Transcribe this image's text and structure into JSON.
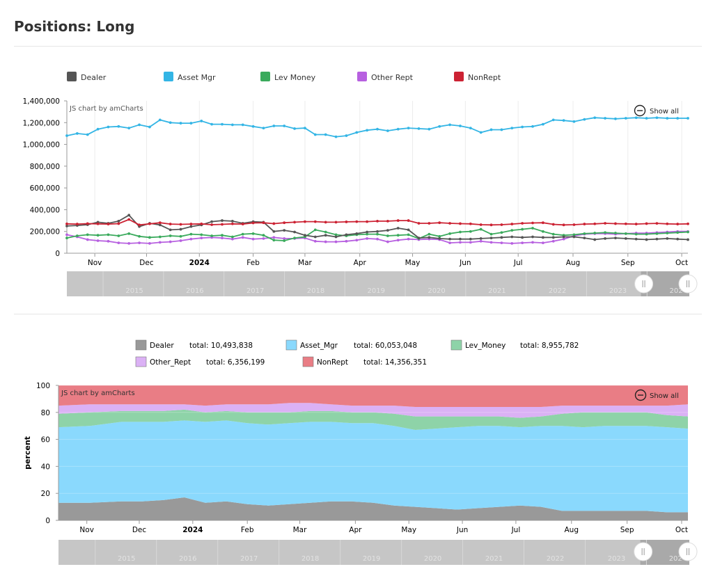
{
  "page": {
    "title": "Positions: Long"
  },
  "colors": {
    "dealer": "#555555",
    "asset_mgr": "#33b5e5",
    "lev_money": "#3aaa5c",
    "other_rept": "#b760e0",
    "nonrept": "#cc2233",
    "dealer_fill": "#999999",
    "asset_fill": "#8ad9fd",
    "lev_fill": "#8ed3a8",
    "other_fill": "#dbb1f5",
    "nonrept_fill": "#e97d85"
  },
  "common": {
    "credit": "JS chart by amCharts",
    "show_all": "Show all",
    "scroll_years": [
      "2015",
      "2016",
      "2017",
      "2018",
      "2019",
      "2020",
      "2021",
      "2022",
      "2023",
      "2024"
    ],
    "scroll_start_year": 2014.4,
    "scroll_end_year": 2024.7,
    "scroll_window": [
      2023.9,
      2024.7
    ]
  },
  "chart_data": [
    {
      "type": "line",
      "title": "Positions: Long",
      "x": [
        0,
        1,
        2,
        3,
        4,
        5,
        6,
        7,
        8,
        9,
        10,
        11,
        12,
        13,
        14,
        15,
        16,
        17,
        18,
        19,
        20,
        21,
        22,
        23,
        24,
        25,
        26,
        27,
        28,
        29,
        30,
        31,
        32,
        33,
        34,
        35,
        36,
        37,
        38,
        39,
        40,
        41,
        42,
        43,
        44,
        45,
        46,
        47,
        48,
        49,
        50,
        51,
        52,
        53,
        54,
        55,
        56,
        57,
        58,
        59,
        60
      ],
      "x_tick_positions": [
        2.7,
        7.7,
        12.8,
        18.0,
        23.0,
        28.3,
        33.4,
        38.5,
        43.6,
        48.9,
        54.2,
        59.4
      ],
      "x_tick_labels": [
        "Nov",
        "Dec",
        "2024",
        "Feb",
        "Mar",
        "Apr",
        "May",
        "Jun",
        "Jul",
        "Aug",
        "Sep",
        "Oct"
      ],
      "ylim": [
        0,
        1400000
      ],
      "y_ticks": [
        0,
        200000,
        400000,
        600000,
        800000,
        1000000,
        1200000,
        1400000
      ],
      "y_tick_labels": [
        "0",
        "200,000",
        "400,000",
        "600,000",
        "800,000",
        "1,000,000",
        "1,200,000",
        "1,400,000"
      ],
      "series": [
        {
          "name": "Dealer",
          "color_key": "dealer",
          "values": [
            250000,
            255000,
            262000,
            285000,
            275000,
            295000,
            350000,
            245000,
            275000,
            260000,
            215000,
            220000,
            245000,
            260000,
            290000,
            300000,
            295000,
            275000,
            290000,
            285000,
            200000,
            210000,
            195000,
            165000,
            150000,
            165000,
            150000,
            170000,
            180000,
            195000,
            200000,
            210000,
            230000,
            215000,
            140000,
            145000,
            135000,
            130000,
            130000,
            130000,
            135000,
            140000,
            145000,
            150000,
            145000,
            150000,
            145000,
            145000,
            150000,
            150000,
            140000,
            125000,
            135000,
            140000,
            135000,
            130000,
            125000,
            130000,
            135000,
            130000,
            125000
          ]
        },
        {
          "name": "Asset Mgr",
          "color_key": "asset_mgr",
          "values": [
            1080000,
            1100000,
            1090000,
            1140000,
            1160000,
            1165000,
            1150000,
            1180000,
            1160000,
            1225000,
            1200000,
            1195000,
            1195000,
            1215000,
            1185000,
            1185000,
            1180000,
            1180000,
            1165000,
            1150000,
            1170000,
            1170000,
            1145000,
            1150000,
            1090000,
            1090000,
            1070000,
            1080000,
            1110000,
            1130000,
            1140000,
            1125000,
            1140000,
            1150000,
            1145000,
            1140000,
            1165000,
            1180000,
            1170000,
            1150000,
            1110000,
            1135000,
            1135000,
            1150000,
            1160000,
            1165000,
            1185000,
            1225000,
            1220000,
            1210000,
            1230000,
            1245000,
            1240000,
            1235000,
            1240000,
            1245000,
            1240000,
            1245000,
            1240000,
            1240000,
            1240000
          ]
        },
        {
          "name": "Lev Money",
          "color_key": "lev_money",
          "values": [
            140000,
            160000,
            170000,
            165000,
            170000,
            160000,
            180000,
            155000,
            145000,
            150000,
            160000,
            155000,
            175000,
            170000,
            160000,
            165000,
            150000,
            175000,
            180000,
            165000,
            120000,
            115000,
            140000,
            150000,
            215000,
            195000,
            170000,
            160000,
            170000,
            175000,
            175000,
            160000,
            165000,
            170000,
            135000,
            175000,
            155000,
            180000,
            195000,
            200000,
            220000,
            175000,
            190000,
            210000,
            220000,
            230000,
            200000,
            175000,
            165000,
            170000,
            180000,
            185000,
            190000,
            185000,
            180000,
            175000,
            175000,
            180000,
            185000,
            190000,
            195000
          ]
        },
        {
          "name": "Other Rept",
          "color_key": "other_rept",
          "values": [
            170000,
            150000,
            125000,
            115000,
            110000,
            95000,
            90000,
            95000,
            90000,
            100000,
            105000,
            115000,
            130000,
            140000,
            145000,
            140000,
            130000,
            145000,
            130000,
            135000,
            145000,
            135000,
            135000,
            140000,
            110000,
            105000,
            105000,
            110000,
            120000,
            135000,
            130000,
            105000,
            120000,
            130000,
            125000,
            130000,
            125000,
            95000,
            100000,
            100000,
            110000,
            100000,
            95000,
            90000,
            95000,
            100000,
            95000,
            110000,
            130000,
            160000,
            175000,
            180000,
            180000,
            175000,
            180000,
            185000,
            185000,
            190000,
            195000,
            200000,
            200000
          ]
        },
        {
          "name": "NonRept",
          "color_key": "nonrept",
          "values": [
            270000,
            268000,
            272000,
            270000,
            268000,
            272000,
            310000,
            260000,
            270000,
            280000,
            268000,
            265000,
            268000,
            270000,
            262000,
            265000,
            270000,
            268000,
            278000,
            280000,
            272000,
            280000,
            285000,
            290000,
            290000,
            285000,
            285000,
            288000,
            290000,
            290000,
            295000,
            295000,
            300000,
            300000,
            275000,
            275000,
            280000,
            275000,
            272000,
            270000,
            262000,
            260000,
            262000,
            268000,
            275000,
            278000,
            280000,
            265000,
            260000,
            262000,
            268000,
            270000,
            275000,
            272000,
            270000,
            268000,
            272000,
            274000,
            270000,
            268000,
            270000
          ]
        }
      ]
    },
    {
      "type": "area",
      "stacking": "percent",
      "ylabel": "percent",
      "ylim": [
        0,
        100
      ],
      "y_ticks": [
        0,
        20,
        40,
        60,
        80,
        100
      ],
      "x_tick_positions": [
        2.7,
        7.7,
        12.8,
        18.0,
        23.0,
        28.3,
        33.4,
        38.5,
        43.6,
        48.9,
        54.2,
        59.4
      ],
      "x_tick_labels": [
        "Nov",
        "Dec",
        "2024",
        "Feb",
        "Mar",
        "Apr",
        "May",
        "Jun",
        "Jul",
        "Aug",
        "Sep",
        "Oct"
      ],
      "legend": [
        {
          "name": "Dealer",
          "total_label": "total: 10,493,838",
          "fill_key": "dealer_fill"
        },
        {
          "name": "Asset_Mgr",
          "total_label": "total: 60,053,048",
          "fill_key": "asset_fill"
        },
        {
          "name": "Lev_Money",
          "total_label": "total: 8,955,782",
          "fill_key": "lev_fill"
        },
        {
          "name": "Other_Rept",
          "total_label": "total: 6,356,199",
          "fill_key": "other_fill"
        },
        {
          "name": "NonRept",
          "total_label": "total: 14,356,351",
          "fill_key": "nonrept_fill"
        }
      ],
      "x": [
        0,
        3,
        6,
        8,
        10,
        12,
        14,
        16,
        18,
        20,
        22,
        24,
        26,
        28,
        30,
        32,
        34,
        36,
        38,
        40,
        42,
        44,
        46,
        48,
        50,
        52,
        54,
        56,
        58,
        60
      ],
      "cumulative": {
        "Dealer": [
          13,
          13,
          14,
          14,
          15,
          17,
          13,
          14,
          12,
          11,
          12,
          13,
          14,
          14,
          13,
          11,
          10,
          9,
          8,
          9,
          10,
          11,
          10,
          7,
          7,
          7,
          7,
          7,
          6,
          6
        ],
        "Asset_Mgr": [
          69,
          70,
          73,
          73,
          73,
          74,
          73,
          74,
          72,
          71,
          72,
          73,
          73,
          72,
          72,
          70,
          67,
          68,
          69,
          70,
          70,
          69,
          70,
          70,
          69,
          70,
          70,
          70,
          69,
          68
        ],
        "Lev_Money": [
          79,
          80,
          81,
          81,
          81,
          82,
          80,
          81,
          80,
          80,
          80,
          81,
          81,
          80,
          80,
          79,
          77,
          77,
          77,
          77,
          77,
          76,
          77,
          79,
          80,
          80,
          80,
          80,
          78,
          77
        ],
        "Other_Rept": [
          85,
          86,
          86,
          86,
          86,
          86,
          85,
          86,
          86,
          86,
          87,
          87,
          86,
          85,
          85,
          85,
          84,
          84,
          84,
          84,
          84,
          84,
          84,
          85,
          85,
          85,
          85,
          85,
          85,
          86
        ],
        "NonRept": [
          100,
          100,
          100,
          100,
          100,
          100,
          100,
          100,
          100,
          100,
          100,
          100,
          100,
          100,
          100,
          100,
          100,
          100,
          100,
          100,
          100,
          100,
          100,
          100,
          100,
          100,
          100,
          100,
          100,
          100
        ]
      }
    }
  ]
}
